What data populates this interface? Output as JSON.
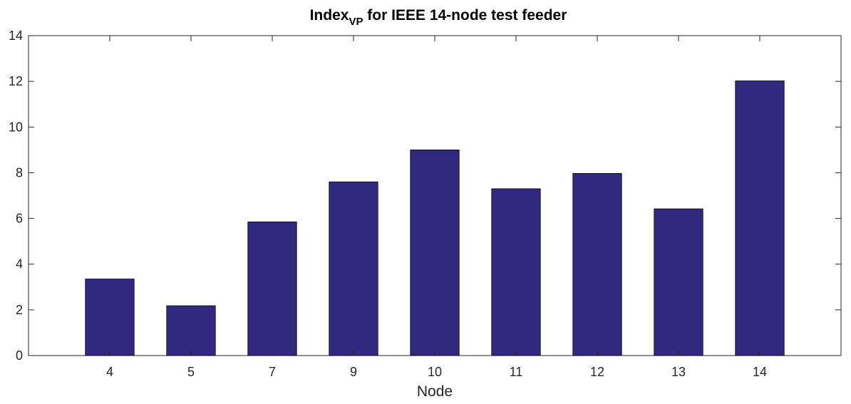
{
  "chart_data": {
    "type": "bar",
    "title": {
      "main": "Index",
      "subscript": "VP",
      "rest": " for IEEE 14-node test feeder"
    },
    "xlabel": "Node",
    "ylabel": "",
    "categories": [
      "4",
      "5",
      "7",
      "9",
      "10",
      "11",
      "12",
      "13",
      "14"
    ],
    "values": [
      3.35,
      2.18,
      5.85,
      7.6,
      9.0,
      7.3,
      7.97,
      6.42,
      12.02
    ],
    "ylim": [
      0,
      14
    ],
    "yticks": [
      0,
      2,
      4,
      6,
      8,
      10,
      12,
      14
    ],
    "grid": false,
    "bar_color": "#31297f",
    "axis_color": "#262626"
  }
}
